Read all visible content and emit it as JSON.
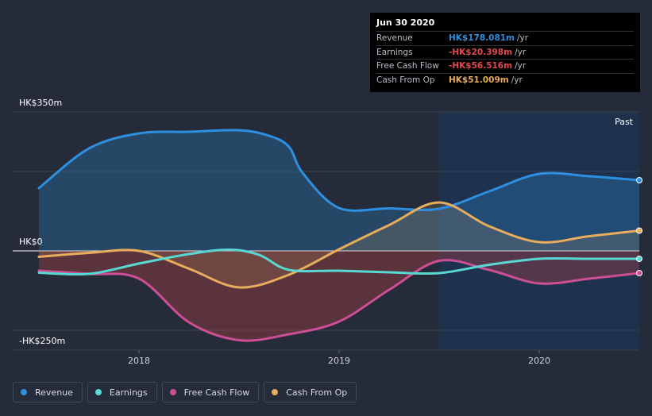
{
  "tooltip": {
    "date": "Jun 30 2020",
    "rows": [
      {
        "label": "Revenue",
        "value": "HK$178.081m",
        "unit": "/yr",
        "color": "#2d8fe0"
      },
      {
        "label": "Earnings",
        "value": "-HK$20.398m",
        "unit": "/yr",
        "color": "#e5484d"
      },
      {
        "label": "Free Cash Flow",
        "value": "-HK$56.516m",
        "unit": "/yr",
        "color": "#e5484d"
      },
      {
        "label": "Cash From Op",
        "value": "HK$51.009m",
        "unit": "/yr",
        "color": "#e7ac5c"
      }
    ]
  },
  "legend": [
    {
      "label": "Revenue",
      "color": "#2d8fe0"
    },
    {
      "label": "Earnings",
      "color": "#59d8d3"
    },
    {
      "label": "Free Cash Flow",
      "color": "#cc4f96"
    },
    {
      "label": "Cash From Op",
      "color": "#e7ac5c"
    }
  ],
  "chart_data": {
    "type": "line",
    "title": "",
    "xlabel": "",
    "ylabel": "",
    "xlim": [
      2017.5,
      2020.5
    ],
    "ylim": [
      -250,
      350
    ],
    "y_tick_labels": [
      "HK$350m",
      "HK$0",
      "-HK$250m"
    ],
    "x_ticks": [
      2018,
      2019,
      2020
    ],
    "x_tick_labels": [
      "2018",
      "2019",
      "2020"
    ],
    "past_label": "Past",
    "past_start": 2019.5,
    "series": [
      {
        "name": "Revenue",
        "color": "#2d8fe0",
        "x": [
          2017.5,
          2017.75,
          2018.0,
          2018.25,
          2018.5,
          2018.65,
          2018.75,
          2018.82,
          2019.0,
          2019.25,
          2019.5,
          2019.75,
          2020.0,
          2020.25,
          2020.5
        ],
        "y": [
          158,
          258,
          296,
          300,
          304,
          290,
          262,
          195,
          108,
          107,
          106,
          150,
          194,
          188,
          178
        ]
      },
      {
        "name": "Earnings",
        "color": "#59d8d3",
        "x": [
          2017.5,
          2017.75,
          2018.0,
          2018.25,
          2018.45,
          2018.6,
          2018.75,
          2019.0,
          2019.25,
          2019.5,
          2019.75,
          2020.0,
          2020.25,
          2020.5
        ],
        "y": [
          -55,
          -58,
          -32,
          -8,
          3,
          -10,
          -48,
          -50,
          -54,
          -56,
          -35,
          -20,
          -20,
          -20
        ]
      },
      {
        "name": "Free Cash Flow",
        "color": "#cc4f96",
        "x": [
          2017.5,
          2017.75,
          2018.0,
          2018.25,
          2018.5,
          2018.75,
          2019.0,
          2019.25,
          2019.5,
          2019.75,
          2020.0,
          2020.25,
          2020.5
        ],
        "y": [
          -50,
          -58,
          -70,
          -180,
          -225,
          -210,
          -178,
          -98,
          -25,
          -48,
          -82,
          -70,
          -56
        ]
      },
      {
        "name": "Cash From Op",
        "color": "#e7ac5c",
        "x": [
          2017.5,
          2017.75,
          2018.0,
          2018.25,
          2018.5,
          2018.75,
          2019.0,
          2019.25,
          2019.5,
          2019.75,
          2020.0,
          2020.25,
          2020.5
        ],
        "y": [
          -15,
          -5,
          0,
          -45,
          -92,
          -60,
          4,
          65,
          122,
          62,
          22,
          37,
          51
        ]
      }
    ]
  }
}
